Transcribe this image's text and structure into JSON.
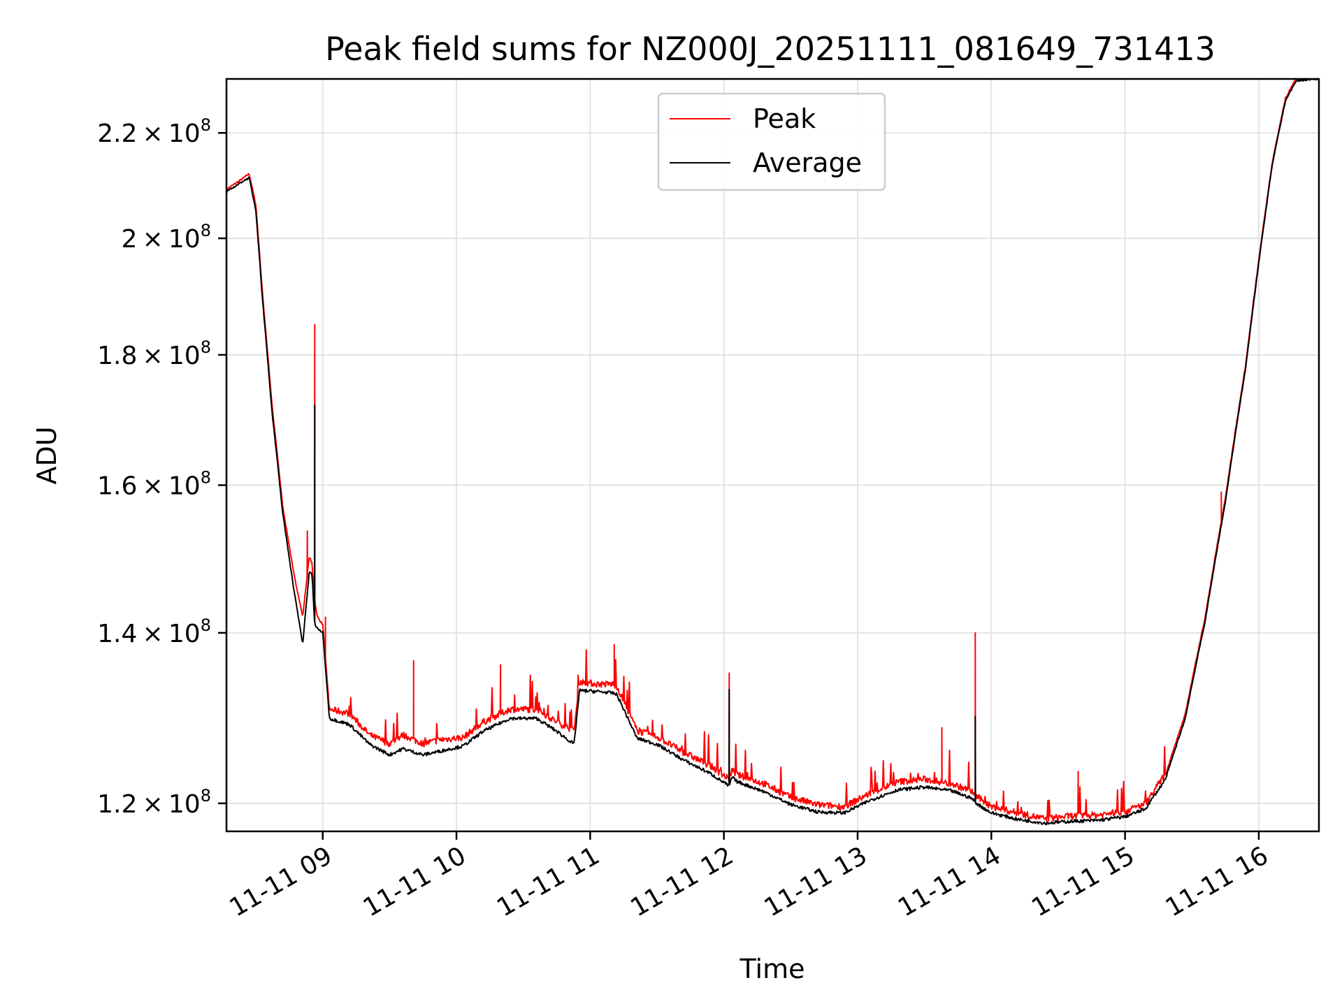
{
  "chart_data": {
    "type": "line",
    "title": "Peak field sums for NZ000J_20251111_081649_731413",
    "xlabel": "Time",
    "ylabel": "ADU",
    "y_scale": "log",
    "x_range_hours": [
      8.28,
      16.45
    ],
    "ylim": [
      117000000,
      231000000
    ],
    "grid": true,
    "legend_position": "top-center",
    "x_ticks": [
      {
        "value": 9,
        "label": "11-11 09"
      },
      {
        "value": 10,
        "label": "11-11 10"
      },
      {
        "value": 11,
        "label": "11-11 11"
      },
      {
        "value": 12,
        "label": "11-11 12"
      },
      {
        "value": 13,
        "label": "11-11 13"
      },
      {
        "value": 14,
        "label": "11-11 14"
      },
      {
        "value": 15,
        "label": "11-11 15"
      },
      {
        "value": 16,
        "label": "11-11 16"
      }
    ],
    "y_ticks": [
      {
        "value": 120000000,
        "mantissa": "1.2",
        "base": "10",
        "exp": "8"
      },
      {
        "value": 140000000,
        "mantissa": "1.4",
        "base": "10",
        "exp": "8"
      },
      {
        "value": 160000000,
        "mantissa": "1.6",
        "base": "10",
        "exp": "8"
      },
      {
        "value": 180000000,
        "mantissa": "1.8",
        "base": "10",
        "exp": "8"
      },
      {
        "value": 200000000,
        "mantissa": "2",
        "base": "10",
        "exp": "8"
      },
      {
        "value": 220000000,
        "mantissa": "2.2",
        "base": "10",
        "exp": "8"
      }
    ],
    "series": [
      {
        "name": "Peak",
        "color": "#ff0000",
        "x_hours": [
          8.28,
          8.4,
          8.45,
          8.5,
          8.55,
          8.62,
          8.7,
          8.78,
          8.85,
          8.9,
          8.92,
          8.94,
          8.96,
          9.0,
          9.05,
          9.2,
          9.35,
          9.5,
          9.6,
          9.75,
          9.9,
          10.05,
          10.2,
          10.4,
          10.6,
          10.75,
          10.88,
          10.92,
          11.05,
          11.17,
          11.2,
          11.35,
          11.5,
          11.7,
          11.9,
          12.04,
          12.06,
          12.1,
          12.3,
          12.5,
          12.7,
          12.9,
          13.1,
          13.3,
          13.5,
          13.7,
          13.85,
          13.9,
          14.0,
          14.2,
          14.4,
          14.6,
          14.8,
          15.0,
          15.15,
          15.3,
          15.45,
          15.6,
          15.75,
          15.9,
          16.0,
          16.1,
          16.2,
          16.28,
          16.45
        ],
        "values": [
          209000000,
          211000000,
          212000000,
          206000000,
          190000000,
          172000000,
          157000000,
          148000000,
          142000000,
          150000000,
          149000000,
          144000000,
          142000000,
          141000000,
          130500000,
          130000000,
          127500000,
          126500000,
          127500000,
          126500000,
          127000000,
          127200000,
          129000000,
          130500000,
          130500000,
          129000000,
          128000000,
          133800000,
          133500000,
          133500000,
          133200000,
          128000000,
          127300000,
          125500000,
          124000000,
          122500000,
          123500000,
          123000000,
          122000000,
          120500000,
          119700000,
          119500000,
          121000000,
          122200000,
          122500000,
          122000000,
          121200000,
          120500000,
          119500000,
          118800000,
          118200000,
          118500000,
          118600000,
          119000000,
          119800000,
          123000000,
          130000000,
          142000000,
          158000000,
          178000000,
          196000000,
          214000000,
          227000000,
          231000000,
          231000000
        ]
      },
      {
        "name": "Average",
        "color": "#000000",
        "x_hours": [
          8.28,
          8.4,
          8.45,
          8.5,
          8.55,
          8.62,
          8.7,
          8.78,
          8.85,
          8.9,
          8.92,
          8.94,
          8.96,
          9.0,
          9.05,
          9.2,
          9.35,
          9.5,
          9.6,
          9.75,
          9.9,
          10.05,
          10.2,
          10.4,
          10.6,
          10.75,
          10.88,
          10.92,
          11.05,
          11.17,
          11.2,
          11.35,
          11.5,
          11.7,
          11.9,
          12.04,
          12.06,
          12.1,
          12.3,
          12.5,
          12.7,
          12.9,
          13.1,
          13.3,
          13.5,
          13.7,
          13.85,
          13.9,
          14.0,
          14.2,
          14.4,
          14.6,
          14.8,
          15.0,
          15.15,
          15.3,
          15.45,
          15.6,
          15.75,
          15.9,
          16.0,
          16.1,
          16.2,
          16.28,
          16.45
        ],
        "values": [
          208500000,
          210500000,
          211200000,
          205000000,
          189000000,
          171000000,
          156000000,
          146000000,
          138500000,
          148000000,
          147500000,
          141000000,
          140500000,
          140000000,
          129500000,
          128800000,
          126500000,
          125300000,
          126000000,
          125300000,
          125800000,
          126300000,
          128000000,
          129500000,
          129500000,
          128000000,
          126500000,
          132800000,
          132700000,
          132500000,
          132300000,
          127200000,
          126500000,
          124700000,
          123200000,
          121800000,
          122800000,
          122300000,
          121200000,
          119800000,
          119000000,
          118900000,
          120300000,
          121400000,
          121700000,
          121300000,
          120500000,
          119800000,
          118900000,
          118200000,
          117800000,
          118000000,
          118100000,
          118500000,
          119300000,
          122500000,
          129500000,
          141500000,
          157500000,
          177500000,
          195500000,
          213500000,
          226500000,
          230500000,
          231000000
        ]
      }
    ],
    "spikes": {
      "Peak": [
        {
          "x": 8.94,
          "value": 185000000
        },
        {
          "x": 8.885,
          "value": 153500000
        },
        {
          "x": 9.02,
          "value": 142000000
        },
        {
          "x": 9.68,
          "value": 136500000
        },
        {
          "x": 10.33,
          "value": 136000000
        },
        {
          "x": 11.18,
          "value": 138500000
        },
        {
          "x": 12.04,
          "value": 135000000
        },
        {
          "x": 13.63,
          "value": 128500000
        },
        {
          "x": 13.88,
          "value": 140000000
        },
        {
          "x": 14.65,
          "value": 123500000
        },
        {
          "x": 15.72,
          "value": 159000000
        }
      ],
      "Average": [
        {
          "x": 8.94,
          "value": 172000000
        },
        {
          "x": 12.04,
          "value": 133000000
        },
        {
          "x": 13.88,
          "value": 129800000
        }
      ]
    }
  }
}
